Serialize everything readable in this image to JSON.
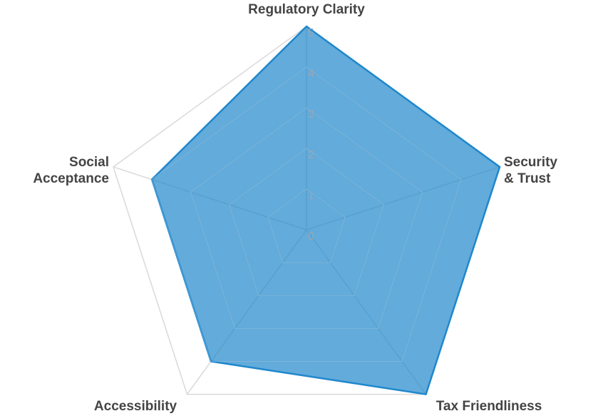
{
  "chart_data": {
    "type": "radar",
    "categories": [
      "Regulatory Clarity",
      "Security\n& Trust",
      "Tax Friendliness",
      "Accessibility",
      "Social\nAcceptance"
    ],
    "values": [
      5,
      5,
      5,
      4,
      4
    ],
    "color": "#1f87cc",
    "rlim": [
      0,
      5
    ],
    "rticks": [
      0,
      1,
      2,
      3,
      4,
      5
    ],
    "grid": true
  }
}
